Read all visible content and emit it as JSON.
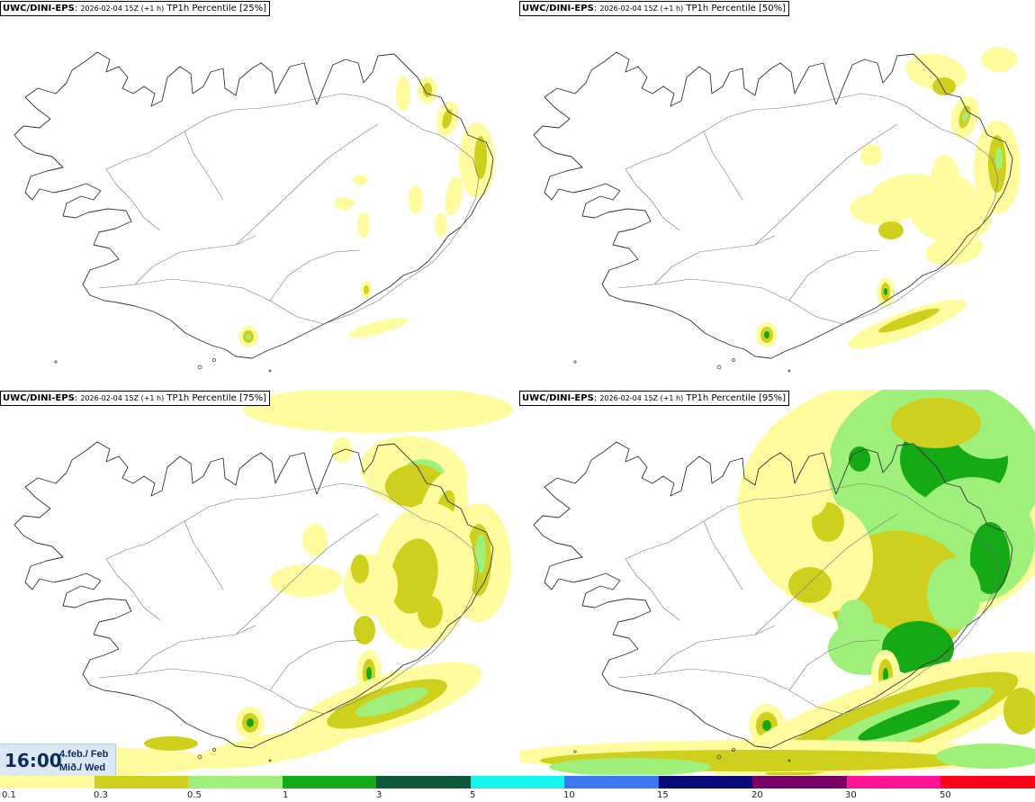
{
  "panels": [
    {
      "source": "UWC/DINI-EPS",
      "run": "2026-02-04 15Z (+1 h)",
      "field": "TP1h Percentile [25%]"
    },
    {
      "source": "UWC/DINI-EPS",
      "run": "2026-02-04 15Z (+1 h)",
      "field": "TP1h Percentile [50%]"
    },
    {
      "source": "UWC/DINI-EPS",
      "run": "2026-02-04 15Z (+1 h)",
      "field": "TP1h Percentile [75%]"
    },
    {
      "source": "UWC/DINI-EPS",
      "run": "2026-02-04 15Z (+1 h)",
      "field": "TP1h Percentile [95%]"
    }
  ],
  "clock": {
    "time": "16:00",
    "date_line": "4.feb./ Feb",
    "day_line": "Mið./ Wed"
  },
  "legend": {
    "thresholds": [
      "0.1",
      "0.3",
      "0.5",
      "1",
      "3",
      "5",
      "10",
      "15",
      "20",
      "30",
      "50"
    ],
    "colors": [
      "#fffca0",
      "#cfcf1e",
      "#9ef07a",
      "#16a916",
      "#0d5a3a",
      "#18f4f0",
      "#3a78ef",
      "#0a0a7a",
      "#7a0066",
      "#ff1493",
      "#ff0018"
    ]
  },
  "colors": {
    "land_outline": "#333333",
    "road": "#777777"
  }
}
